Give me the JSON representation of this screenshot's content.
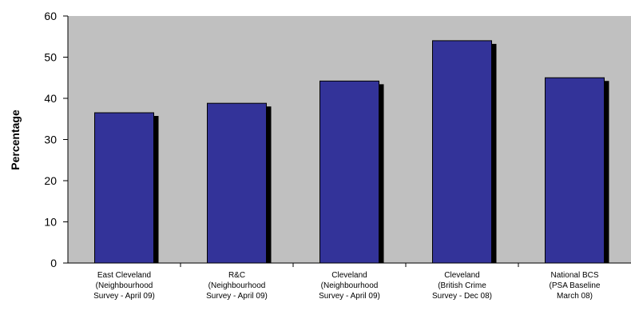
{
  "chart_data": {
    "type": "bar",
    "title": "",
    "xlabel": "",
    "ylabel": "Percentage",
    "ylim": [
      0,
      60
    ],
    "yticks": [
      0,
      10,
      20,
      30,
      40,
      50,
      60
    ],
    "grid": false,
    "legend": "none",
    "categories": [
      [
        "East Cleveland",
        "(Neighbourhood",
        "Survey - April 09)"
      ],
      [
        "R&C",
        "(Neighbourhood",
        "Survey - April 09)"
      ],
      [
        "Cleveland",
        "(Neighbourhood",
        "Survey - April 09)"
      ],
      [
        "Cleveland",
        "(British Crime",
        "Survey - Dec 08)"
      ],
      [
        "National BCS",
        "(PSA Baseline",
        "March 08)"
      ]
    ],
    "values": [
      36.5,
      38.8,
      44.2,
      54,
      45
    ],
    "colors": {
      "bar": "#333399",
      "bar_shadow": "#000000",
      "plot_background": "#c0c0c0",
      "axis": "#000000"
    }
  }
}
